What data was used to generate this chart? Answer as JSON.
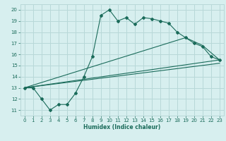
{
  "xlabel": "Humidex (Indice chaleur)",
  "bg_color": "#d7efef",
  "grid_color": "#b8d8d8",
  "line_color": "#1a6b5a",
  "xlim": [
    -0.5,
    23.5
  ],
  "ylim": [
    10.5,
    20.5
  ],
  "yticks": [
    11,
    12,
    13,
    14,
    15,
    16,
    17,
    18,
    19,
    20
  ],
  "xticks": [
    0,
    1,
    2,
    3,
    4,
    5,
    6,
    7,
    8,
    9,
    10,
    11,
    12,
    13,
    14,
    15,
    16,
    17,
    18,
    19,
    20,
    21,
    22,
    23
  ],
  "line1_x": [
    0,
    1,
    2,
    3,
    4,
    5,
    6,
    7,
    8,
    9,
    10,
    11,
    12,
    13,
    14,
    15,
    16,
    17,
    18,
    19,
    20,
    21,
    22,
    23
  ],
  "line1_y": [
    13,
    13,
    12,
    11,
    11.5,
    11.5,
    12.5,
    14,
    15.8,
    19.5,
    20,
    19,
    19.3,
    18.7,
    19.3,
    19.2,
    19,
    18.8,
    18,
    17.5,
    17,
    16.7,
    15.8,
    15.5
  ],
  "line2_x": [
    0,
    23
  ],
  "line2_y": [
    13,
    15.5
  ],
  "line3_x": [
    0,
    23
  ],
  "line3_y": [
    13,
    15.2
  ],
  "line4_x": [
    0,
    19,
    21,
    23
  ],
  "line4_y": [
    13,
    17.5,
    16.8,
    15.5
  ]
}
